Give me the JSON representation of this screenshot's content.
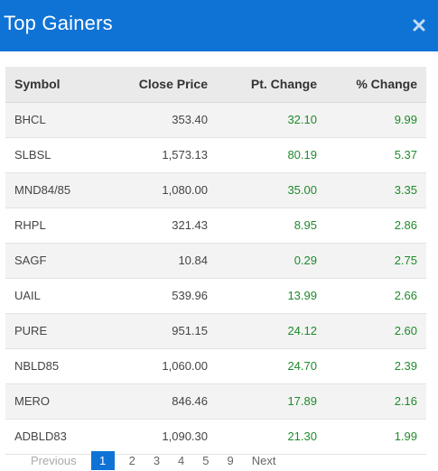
{
  "header": {
    "title": "Top Gainers",
    "close_icon": "close-icon"
  },
  "table": {
    "columns": [
      "Symbol",
      "Close Price",
      "Pt. Change",
      "% Change"
    ],
    "rows": [
      [
        "BHCL",
        "353.40",
        "32.10",
        "9.99"
      ],
      [
        "SLBSL",
        "1,573.13",
        "80.19",
        "5.37"
      ],
      [
        "MND84/85",
        "1,080.00",
        "35.00",
        "3.35"
      ],
      [
        "RHPL",
        "321.43",
        "8.95",
        "2.86"
      ],
      [
        "SAGF",
        "10.84",
        "0.29",
        "2.75"
      ],
      [
        "UAIL",
        "539.96",
        "13.99",
        "2.66"
      ],
      [
        "PURE",
        "951.15",
        "24.12",
        "2.60"
      ],
      [
        "NBLD85",
        "1,060.00",
        "24.70",
        "2.39"
      ],
      [
        "MERO",
        "846.46",
        "17.89",
        "2.16"
      ],
      [
        "ADBLD83",
        "1,090.30",
        "21.30",
        "1.99"
      ]
    ]
  },
  "pagination": {
    "prev_label": "Previous",
    "pages": [
      "1",
      "2",
      "3",
      "4",
      "5",
      "9"
    ],
    "next_label": "Next",
    "current_page": "1"
  },
  "colors": {
    "header": "#0f73d6",
    "positive": "#1f8a2c"
  }
}
